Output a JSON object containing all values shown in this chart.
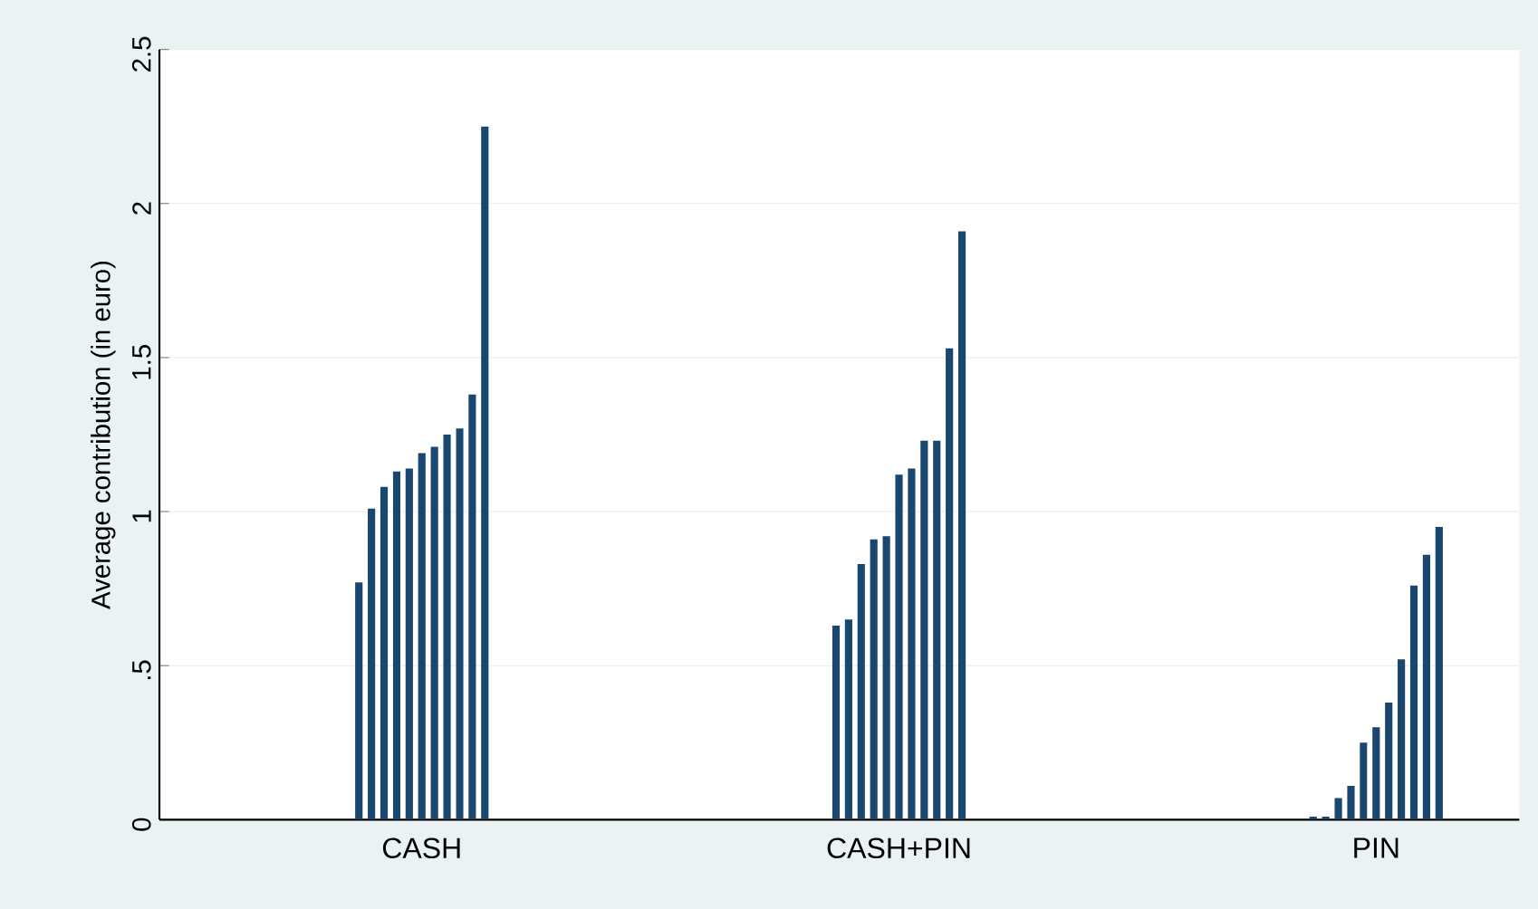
{
  "chart_data": {
    "type": "bar",
    "ylabel": "Average contribution (in euro)",
    "categories": [
      "CASH",
      "CASH+PIN",
      "PIN"
    ],
    "series": [
      {
        "color": "#1a476f",
        "values": [
          0.77,
          0.63,
          0.01
        ]
      },
      {
        "color": "#1a476f",
        "values": [
          1.01,
          0.65,
          0.01
        ]
      },
      {
        "color": "#1a476f",
        "values": [
          1.08,
          0.83,
          0.07
        ]
      },
      {
        "color": "#1a476f",
        "values": [
          1.13,
          0.91,
          0.11
        ]
      },
      {
        "color": "#1a476f",
        "values": [
          1.14,
          0.92,
          0.25
        ]
      },
      {
        "color": "#1a476f",
        "values": [
          1.19,
          1.12,
          0.3
        ]
      },
      {
        "color": "#1a476f",
        "values": [
          1.21,
          1.14,
          0.38
        ]
      },
      {
        "color": "#1a476f",
        "values": [
          1.25,
          1.23,
          0.52
        ]
      },
      {
        "color": "#1a476f",
        "values": [
          1.27,
          1.23,
          0.76
        ]
      },
      {
        "color": "#1a476f",
        "values": [
          1.38,
          1.53,
          0.86
        ]
      },
      {
        "color": "#1a476f",
        "values": [
          2.25,
          1.91,
          0.95
        ]
      }
    ],
    "ylim": [
      0,
      2.5
    ],
    "yticks": [
      0,
      {
        "value": 0.5,
        "label": ".5"
      },
      1,
      1.5,
      2,
      2.5
    ],
    "grid": "y"
  }
}
